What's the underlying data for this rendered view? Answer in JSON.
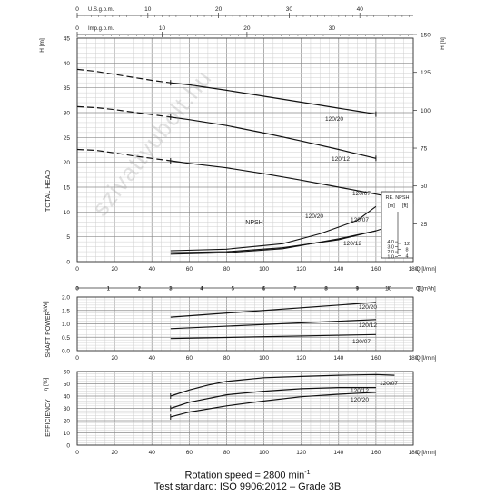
{
  "footer": {
    "line1": "Rotation speed = 2800 min",
    "line1_sup": "-1",
    "line2": "Test standard: ISO 9906:2012 – Grade 3B"
  },
  "watermark": "szivattyubolt.hu",
  "top_axes": {
    "usgpm": {
      "label": "U.S.g.p.m.",
      "ticks": [
        0,
        10,
        20,
        30,
        40,
        50
      ],
      "max": 50
    },
    "impgpm": {
      "label": "Imp.g.p.m.",
      "ticks": [
        0,
        10,
        20,
        30,
        40
      ],
      "max": 40
    },
    "m3h_ticks": [
      0,
      1,
      2,
      3,
      4,
      5,
      6,
      7,
      8,
      9,
      10,
      11
    ],
    "m3h_unit": "Q [m³/h]"
  },
  "chart_data": [
    {
      "type": "line",
      "id": "head",
      "ylabel": "TOTAL HEAD",
      "yunit_left": "H [m]",
      "yunit_right": "H [ft]",
      "xunit": "Q [l/min]",
      "xlim": [
        0,
        180
      ],
      "ylim": [
        0,
        45
      ],
      "xticks": [
        0,
        20,
        40,
        60,
        80,
        100,
        120,
        140,
        160,
        180
      ],
      "yticks": [
        0,
        5,
        10,
        15,
        20,
        25,
        30,
        35,
        40,
        45
      ],
      "ft_ticks": [
        25,
        50,
        75,
        100,
        125,
        150
      ],
      "series": [
        {
          "name": "120/20",
          "dashed_x": [
            0,
            10,
            20,
            30,
            40,
            50
          ],
          "dashed_y": [
            38.7,
            38.3,
            37.7,
            37.1,
            36.5,
            36.0
          ],
          "x": [
            50,
            60,
            80,
            100,
            120,
            140,
            160
          ],
          "y": [
            36.0,
            35.6,
            34.5,
            33.3,
            32.1,
            30.9,
            29.7
          ]
        },
        {
          "name": "120/12",
          "dashed_x": [
            0,
            10,
            20,
            30,
            40,
            50
          ],
          "dashed_y": [
            31.2,
            31.0,
            30.6,
            30.1,
            29.6,
            29.1
          ],
          "x": [
            50,
            60,
            80,
            100,
            120,
            140,
            160
          ],
          "y": [
            29.1,
            28.6,
            27.4,
            25.9,
            24.3,
            22.6,
            20.8
          ]
        },
        {
          "name": "120/07",
          "dashed_x": [
            0,
            10,
            20,
            30,
            40,
            50
          ],
          "dashed_y": [
            22.6,
            22.4,
            21.9,
            21.3,
            20.8,
            20.3
          ],
          "x": [
            50,
            60,
            80,
            100,
            120,
            140,
            160,
            180
          ],
          "y": [
            20.3,
            19.8,
            18.9,
            17.7,
            16.4,
            15.0,
            13.6,
            12.1
          ]
        }
      ],
      "npsh": {
        "label": "NPSH",
        "series": [
          {
            "name": "120/20",
            "x": [
              50,
              80,
              110,
              130,
              150,
              160
            ],
            "y": [
              2.2,
              2.5,
              3.6,
              5.6,
              8.3,
              11.1
            ]
          },
          {
            "name": "120/07",
            "x": [
              50,
              80,
              110,
              140,
              160,
              170,
              180
            ],
            "y": [
              1.8,
              2.0,
              2.8,
              4.4,
              6.2,
              7.4,
              8.8
            ]
          },
          {
            "name": "120/12",
            "x": [
              50,
              80,
              110,
              140,
              160
            ],
            "y": [
              1.5,
              1.8,
              2.6,
              4.6,
              6.2
            ]
          }
        ],
        "inset": {
          "title": "RE. NPSH",
          "units": [
            "[m]",
            "[ft]"
          ],
          "m_ticks": [
            1.0,
            2.0,
            3.0,
            4.0
          ],
          "ft_ticks": [
            4,
            8,
            12
          ],
          "m_labels": [
            "1.0",
            "2.0",
            "3.0",
            "4.0"
          ]
        }
      }
    },
    {
      "type": "line",
      "id": "power",
      "ylabel": "SHAFT POWER",
      "yunit": "[kW]",
      "xunit": "Q [l/min]",
      "xlim": [
        0,
        180
      ],
      "ylim": [
        0,
        2
      ],
      "xticks": [
        0,
        20,
        40,
        60,
        80,
        100,
        120,
        140,
        160,
        180
      ],
      "yticks": [
        0.0,
        0.5,
        1.0,
        1.5,
        2.0
      ],
      "ytick_labels": [
        "0.0",
        "0.5",
        "1.0",
        "1.5",
        "2.0"
      ],
      "series": [
        {
          "name": "120/20",
          "x": [
            50,
            160
          ],
          "y": [
            1.25,
            1.8
          ]
        },
        {
          "name": "120/12",
          "x": [
            50,
            160
          ],
          "y": [
            0.82,
            1.16
          ]
        },
        {
          "name": "120/07",
          "x": [
            50,
            160
          ],
          "y": [
            0.45,
            0.6
          ]
        }
      ]
    },
    {
      "type": "line",
      "id": "efficiency",
      "ylabel": "EFFICIENCY",
      "yunit": "η [%]",
      "xunit": "Q [l/min]",
      "xlim": [
        0,
        180
      ],
      "ylim": [
        0,
        60
      ],
      "xticks": [
        0,
        20,
        40,
        60,
        80,
        100,
        120,
        140,
        160,
        180
      ],
      "yticks": [
        0,
        10,
        20,
        30,
        40,
        50,
        60
      ],
      "series": [
        {
          "name": "120/07",
          "x": [
            50,
            60,
            70,
            80,
            100,
            120,
            140,
            160,
            170
          ],
          "y": [
            40,
            45,
            49,
            52,
            55,
            56,
            57,
            57.5,
            57
          ]
        },
        {
          "name": "120/12",
          "x": [
            50,
            60,
            80,
            100,
            120,
            140,
            160
          ],
          "y": [
            30,
            35,
            41,
            44,
            46,
            47,
            47
          ]
        },
        {
          "name": "120/20",
          "x": [
            50,
            60,
            80,
            100,
            120,
            140,
            160
          ],
          "y": [
            23,
            27,
            32,
            36,
            39.5,
            41.5,
            43
          ]
        }
      ]
    }
  ]
}
